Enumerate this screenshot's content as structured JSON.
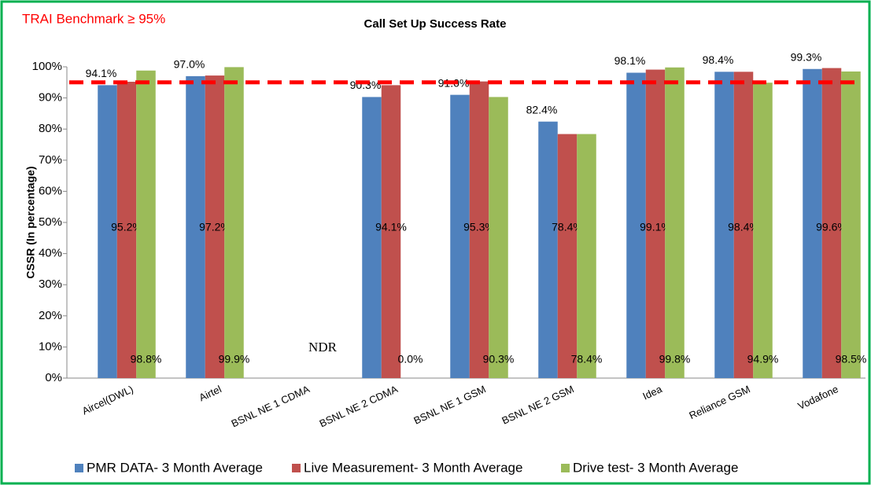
{
  "chart_data": {
    "type": "bar",
    "title": "Call Set Up Success Rate",
    "y_label": "CSSR (In percentage)",
    "benchmark": {
      "label": "TRAI Benchmark ≥ 95%",
      "value": 95,
      "color": "#ff0000"
    },
    "annotation": "NDR",
    "categories": [
      "Aircel(DWL)",
      "Airtel",
      "BSNL NE 1 CDMA",
      "BSNL NE 2 CDMA",
      "BSNL NE 1 GSM",
      "BSNL NE 2 GSM",
      "Idea",
      "Reliance GSM",
      "Vodafone"
    ],
    "series": [
      {
        "name": "PMR DATA- 3 Month Average",
        "color": "#4f81bd",
        "values": [
          94.1,
          97.0,
          null,
          90.3,
          91.0,
          82.4,
          98.1,
          98.4,
          99.3
        ],
        "value_labels": [
          "94.1%",
          "97.0%",
          null,
          "90.3%",
          "91.0%",
          "82.4%",
          "98.1%",
          "98.4%",
          "99.3%"
        ]
      },
      {
        "name": "Live Measurement- 3 Month Average",
        "color": "#c0504d",
        "values": [
          95.2,
          97.2,
          null,
          94.1,
          95.3,
          78.4,
          99.1,
          98.4,
          99.6
        ],
        "value_labels": [
          "95.2%",
          "97.2%",
          null,
          "94.1%",
          "95.3%",
          "78.4%",
          "99.1%",
          "98.4%",
          "99.6%"
        ]
      },
      {
        "name": "Drive test- 3 Month Average",
        "color": "#9bbb59",
        "values": [
          98.8,
          99.9,
          null,
          0.0,
          90.3,
          78.4,
          99.8,
          94.9,
          98.5
        ],
        "value_labels": [
          "98.8%",
          "99.9%",
          null,
          "0.0%",
          "90.3%",
          "78.4%",
          "99.8%",
          "94.9%",
          "98.5%"
        ]
      }
    ],
    "ylim": [
      0,
      100
    ],
    "yticks": [
      {
        "value": 0,
        "label": "0%"
      },
      {
        "value": 10,
        "label": "10%"
      },
      {
        "value": 20,
        "label": "20%"
      },
      {
        "value": 30,
        "label": "30%"
      },
      {
        "value": 40,
        "label": "40%"
      },
      {
        "value": 50,
        "label": "50%"
      },
      {
        "value": 60,
        "label": "60%"
      },
      {
        "value": 70,
        "label": "70%"
      },
      {
        "value": 80,
        "label": "80%"
      },
      {
        "value": 90,
        "label": "90%"
      },
      {
        "value": 100,
        "label": "100%"
      }
    ],
    "legend": "bottom"
  }
}
